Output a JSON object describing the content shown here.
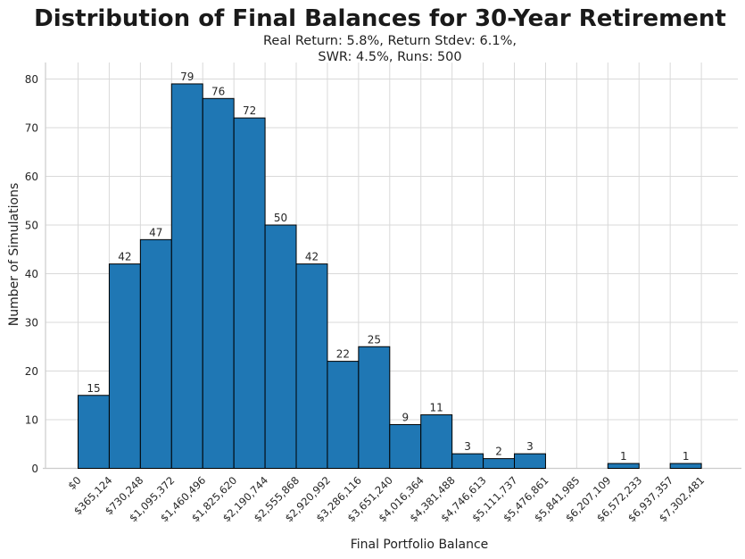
{
  "chart_data": {
    "type": "bar",
    "title": "Distribution of Final Balances for 30-Year Retirement",
    "subtitle_line1": "Real Return: 5.8%, Return Stdev: 6.1%,",
    "subtitle_line2": "SWR: 4.5%, Runs: 500",
    "xlabel": "Final Portfolio Balance",
    "ylabel": "Number of Simulations",
    "bin_edges": [
      "$0",
      "$365,124",
      "$730,248",
      "$1,095,372",
      "$1,460,496",
      "$1,825,620",
      "$2,190,744",
      "$2,555,868",
      "$2,920,992",
      "$3,286,116",
      "$3,651,240",
      "$4,016,364",
      "$4,381,488",
      "$4,746,613",
      "$5,111,737",
      "$5,476,861",
      "$5,841,985",
      "$6,207,109",
      "$6,572,233",
      "$6,937,357",
      "$7,302,481"
    ],
    "values": [
      15,
      42,
      47,
      79,
      76,
      72,
      50,
      42,
      22,
      25,
      9,
      11,
      3,
      2,
      3,
      0,
      0,
      1,
      0,
      1
    ],
    "total_runs": 500,
    "yticks": [
      0,
      10,
      20,
      30,
      40,
      50,
      60,
      70,
      80
    ],
    "ylim": [
      0,
      83.4
    ],
    "grid": true,
    "legend": "none",
    "bar_color": "#1f77b4",
    "bar_edge_color": "#000000",
    "grid_color": "#d9d9d9",
    "spine_color": "#cccccc",
    "text_color": "#262626"
  }
}
